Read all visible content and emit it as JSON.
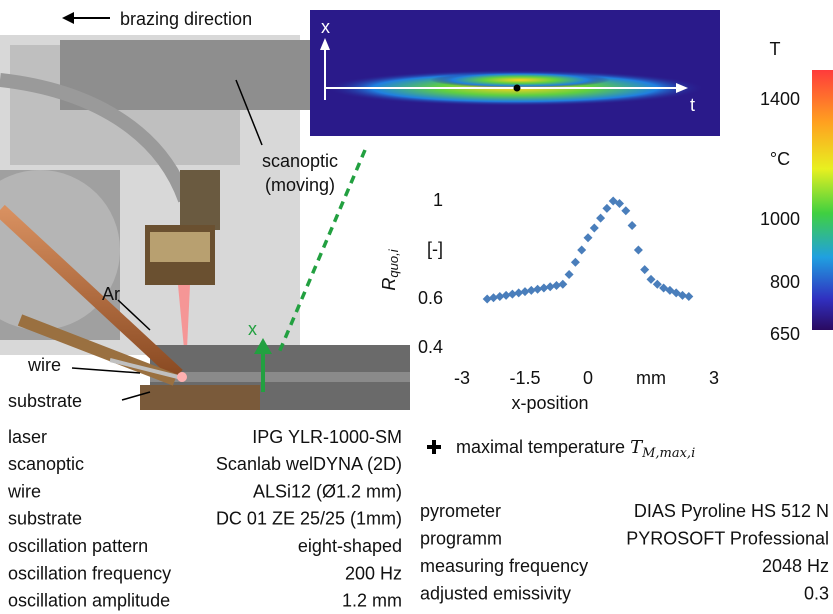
{
  "chart_data": {
    "type": "scatter",
    "x_label": "x-position",
    "y_label": "R",
    "y_label_sub": "quo,i",
    "color": "#4a7ebb",
    "grid": false,
    "x": [
      -2.4,
      -2.25,
      -2.1,
      -1.95,
      -1.8,
      -1.65,
      -1.5,
      -1.35,
      -1.2,
      -1.05,
      -0.9,
      -0.75,
      -0.6,
      -0.45,
      -0.3,
      -0.15,
      0,
      0.15,
      0.3,
      0.45,
      0.6,
      0.75,
      0.9,
      1.05,
      1.2,
      1.35,
      1.5,
      1.65,
      1.8,
      1.95,
      2.1,
      2.25,
      2.4
    ],
    "values": [
      0.6,
      0.605,
      0.61,
      0.615,
      0.62,
      0.625,
      0.63,
      0.635,
      0.64,
      0.645,
      0.65,
      0.655,
      0.66,
      0.7,
      0.75,
      0.8,
      0.85,
      0.89,
      0.93,
      0.97,
      1.0,
      0.99,
      0.96,
      0.9,
      0.8,
      0.72,
      0.68,
      0.66,
      0.645,
      0.635,
      0.625,
      0.615,
      0.61
    ],
    "xlim": [
      -3,
      3
    ],
    "xticks": [
      -3,
      -1.5,
      0,
      {
        "value": 1.5,
        "label": "mm"
      },
      3
    ],
    "ylim": [
      0.4,
      1.1
    ],
    "yticks": [
      0.4,
      0.6,
      {
        "value": 0.8,
        "label": "[-]"
      },
      1
    ]
  },
  "photo": {
    "direction": "brazing direction",
    "scanoptic": [
      "scanoptic",
      "(moving)"
    ],
    "argon": "Ar",
    "wire": "wire",
    "substrate": "substrate",
    "axis": "x"
  },
  "thermal_image": {
    "x_axis": "x",
    "t_axis": "t"
  },
  "colorbar": {
    "title": "T",
    "unit": "°C",
    "ticks": [
      "1400",
      "1000",
      "800",
      "650"
    ]
  },
  "legend": {
    "text": "maximal temperature",
    "symbol": "T",
    "symbol_sub": "M,max,i"
  },
  "setup_table": [
    [
      "laser",
      "IPG YLR-1000-SM"
    ],
    [
      "scanoptic",
      "Scanlab welDYNA (2D)"
    ],
    [
      "wire",
      "ALSi12 (Ø1.2 mm)"
    ],
    [
      "substrate",
      "DC 01 ZE 25/25 (1mm)"
    ],
    [
      "oscillation pattern",
      "eight-shaped"
    ],
    [
      "oscillation frequency",
      "200 Hz"
    ],
    [
      "oscillation amplitude",
      "1.2 mm"
    ]
  ],
  "pyrometer_table": [
    [
      "pyrometer",
      "DIAS Pyroline HS 512 N"
    ],
    [
      "programm",
      "PYROSOFT Professional"
    ],
    [
      "measuring frequency",
      "2048 Hz"
    ],
    [
      "adjusted emissivity",
      "0.3"
    ]
  ]
}
